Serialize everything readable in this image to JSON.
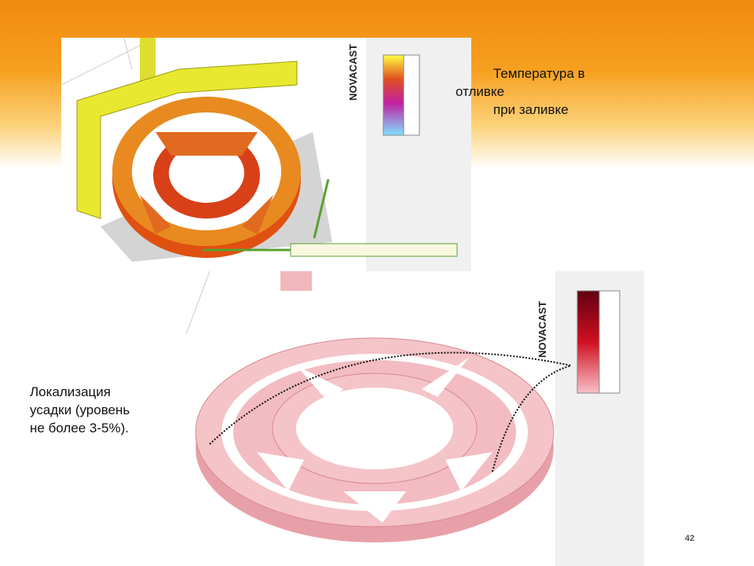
{
  "top": {
    "caption": [
      "Температура в",
      "отливке",
      "при заливке"
    ],
    "logo": "NOVACAST"
  },
  "bottom": {
    "caption": [
      "Локализация",
      "усадки (уровень",
      "не более 3-5%)."
    ],
    "logo": "NOVACAST"
  },
  "page_number": "42"
}
